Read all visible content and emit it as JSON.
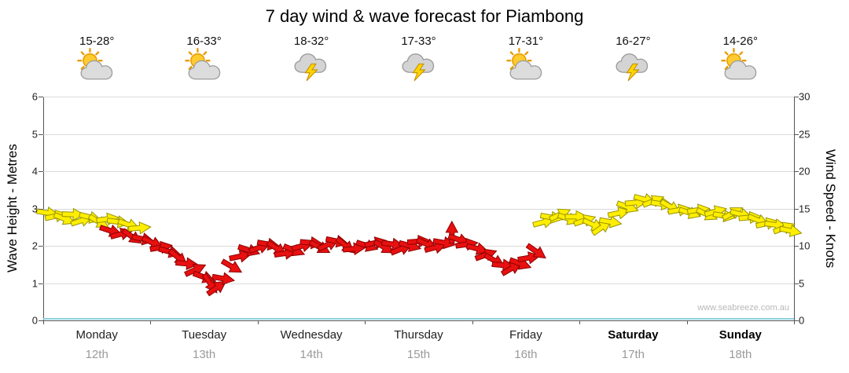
{
  "title": "7 day wind & wave forecast for Piambong",
  "watermark": "www.seabreeze.com.au",
  "axes": {
    "left_label": "Wave Height - Metres",
    "right_label": "Wind Speed - Knots",
    "left_ticks": [
      0,
      1,
      2,
      3,
      4,
      5,
      6
    ],
    "right_ticks": [
      0,
      5,
      10,
      15,
      20,
      25,
      30
    ]
  },
  "forecast": {
    "days": [
      {
        "name": "Monday",
        "date": "12th",
        "temp": "15-28°",
        "icon": "sun-cloud",
        "bold": false
      },
      {
        "name": "Tuesday",
        "date": "13th",
        "temp": "16-33°",
        "icon": "sun-cloud",
        "bold": false
      },
      {
        "name": "Wednesday",
        "date": "14th",
        "temp": "18-32°",
        "icon": "storm",
        "bold": false
      },
      {
        "name": "Thursday",
        "date": "15th",
        "temp": "17-33°",
        "icon": "storm",
        "bold": false
      },
      {
        "name": "Friday",
        "date": "16th",
        "temp": "17-31°",
        "icon": "sun-cloud",
        "bold": false
      },
      {
        "name": "Saturday",
        "date": "17th",
        "temp": "16-27°",
        "icon": "storm",
        "bold": true
      },
      {
        "name": "Sunday",
        "date": "18th",
        "temp": "14-26°",
        "icon": "sun-cloud",
        "bold": true
      }
    ]
  },
  "chart_data": {
    "type": "scatter",
    "subtype": "wind-direction-arrows",
    "title": "7 day wind & wave forecast for Piambong",
    "x_categories": [
      "Monday 12th",
      "Tuesday 13th",
      "Wednesday 14th",
      "Thursday 15th",
      "Friday 16th",
      "Saturday 17th",
      "Sunday 18th"
    ],
    "y_left": {
      "label": "Wave Height - Metres",
      "range": [
        0,
        6
      ]
    },
    "y_right": {
      "label": "Wind Speed - Knots",
      "range": [
        0,
        30
      ]
    },
    "grid": "horizontal",
    "legend": "none",
    "colors": {
      "y": "#ffee00",
      "r": "#e81010"
    },
    "outline_colors": {
      "y": "#999400",
      "r": "#8c0000"
    },
    "wave_height": {
      "constant_m": 0.05,
      "color": "#8ecfdd"
    },
    "points_format": [
      "day_fraction_x",
      "wind_knots",
      "direction_deg",
      "color_key"
    ],
    "points": [
      [
        0.04,
        14.4,
        10,
        "y"
      ],
      [
        0.12,
        14.0,
        -12,
        "y"
      ],
      [
        0.2,
        13.6,
        22,
        "y"
      ],
      [
        0.28,
        14.2,
        2,
        "y"
      ],
      [
        0.36,
        13.4,
        -18,
        "y"
      ],
      [
        0.44,
        13.8,
        15,
        "y"
      ],
      [
        0.52,
        13.2,
        30,
        "y"
      ],
      [
        0.6,
        13.6,
        -8,
        "y"
      ],
      [
        0.63,
        12.0,
        18,
        "r"
      ],
      [
        0.7,
        13.2,
        8,
        "y"
      ],
      [
        0.73,
        11.6,
        -15,
        "r"
      ],
      [
        0.8,
        12.8,
        20,
        "y"
      ],
      [
        0.83,
        11.2,
        35,
        "r"
      ],
      [
        0.9,
        12.4,
        -5,
        "y"
      ],
      [
        0.93,
        10.9,
        12,
        "r"
      ],
      [
        1.02,
        10.4,
        25,
        "r"
      ],
      [
        1.1,
        9.8,
        -10,
        "r"
      ],
      [
        1.18,
        9.2,
        15,
        "r"
      ],
      [
        1.26,
        8.4,
        40,
        "r"
      ],
      [
        1.34,
        7.6,
        5,
        "r"
      ],
      [
        1.42,
        6.8,
        -25,
        "r"
      ],
      [
        1.5,
        5.8,
        20,
        "r"
      ],
      [
        1.56,
        4.9,
        55,
        "r"
      ],
      [
        1.62,
        4.4,
        -35,
        "r"
      ],
      [
        1.68,
        5.6,
        10,
        "r"
      ],
      [
        1.76,
        7.2,
        30,
        "r"
      ],
      [
        1.84,
        8.6,
        -12,
        "r"
      ],
      [
        1.92,
        9.4,
        18,
        "r"
      ],
      [
        2.02,
        9.8,
        -20,
        "r"
      ],
      [
        2.1,
        10.2,
        10,
        "r"
      ],
      [
        2.18,
        9.6,
        35,
        "r"
      ],
      [
        2.26,
        9.0,
        -8,
        "r"
      ],
      [
        2.34,
        9.4,
        22,
        "r"
      ],
      [
        2.42,
        10.0,
        -15,
        "r"
      ],
      [
        2.5,
        10.4,
        5,
        "r"
      ],
      [
        2.58,
        9.8,
        28,
        "r"
      ],
      [
        2.66,
        10.2,
        -25,
        "r"
      ],
      [
        2.74,
        10.6,
        12,
        "r"
      ],
      [
        2.82,
        10.0,
        40,
        "r"
      ],
      [
        2.9,
        9.6,
        -5,
        "r"
      ],
      [
        3.02,
        10.0,
        18,
        "r"
      ],
      [
        3.1,
        10.4,
        -12,
        "r"
      ],
      [
        3.18,
        9.8,
        30,
        "r"
      ],
      [
        3.26,
        10.2,
        8,
        "r"
      ],
      [
        3.34,
        9.6,
        -22,
        "r"
      ],
      [
        3.42,
        10.0,
        15,
        "r"
      ],
      [
        3.5,
        10.6,
        -5,
        "r"
      ],
      [
        3.58,
        10.2,
        25,
        "r"
      ],
      [
        3.66,
        9.8,
        -15,
        "r"
      ],
      [
        3.74,
        10.4,
        10,
        "r"
      ],
      [
        3.81,
        11.8,
        -90,
        "r"
      ],
      [
        3.88,
        10.8,
        20,
        "r"
      ],
      [
        3.95,
        10.2,
        -8,
        "r"
      ],
      [
        4.05,
        9.6,
        15,
        "r"
      ],
      [
        4.13,
        8.8,
        -20,
        "r"
      ],
      [
        4.21,
        8.0,
        30,
        "r"
      ],
      [
        4.29,
        7.4,
        5,
        "r"
      ],
      [
        4.37,
        7.0,
        -30,
        "r"
      ],
      [
        4.45,
        7.6,
        20,
        "r"
      ],
      [
        4.53,
        8.4,
        -10,
        "r"
      ],
      [
        4.6,
        9.2,
        35,
        "r"
      ],
      [
        4.67,
        13.2,
        -15,
        "y"
      ],
      [
        4.74,
        13.8,
        10,
        "y"
      ],
      [
        4.82,
        14.2,
        -25,
        "y"
      ],
      [
        4.9,
        13.6,
        20,
        "y"
      ],
      [
        4.97,
        13.9,
        0,
        "y"
      ],
      [
        5.05,
        13.4,
        -18,
        "y"
      ],
      [
        5.13,
        12.8,
        25,
        "y"
      ],
      [
        5.21,
        12.5,
        -35,
        "y"
      ],
      [
        5.29,
        13.2,
        10,
        "y"
      ],
      [
        5.37,
        14.4,
        -12,
        "y"
      ],
      [
        5.45,
        15.2,
        20,
        "y"
      ],
      [
        5.53,
        15.8,
        -5,
        "y"
      ],
      [
        5.61,
        16.2,
        15,
        "y"
      ],
      [
        5.69,
        16.0,
        -22,
        "y"
      ],
      [
        5.77,
        15.6,
        8,
        "y"
      ],
      [
        5.85,
        15.2,
        30,
        "y"
      ],
      [
        5.93,
        14.8,
        -10,
        "y"
      ],
      [
        6.03,
        14.4,
        18,
        "y"
      ],
      [
        6.11,
        14.8,
        -8,
        "y"
      ],
      [
        6.19,
        14.2,
        25,
        "y"
      ],
      [
        6.27,
        14.6,
        -15,
        "y"
      ],
      [
        6.35,
        14.0,
        10,
        "y"
      ],
      [
        6.43,
        14.4,
        -28,
        "y"
      ],
      [
        6.51,
        14.2,
        15,
        "y"
      ],
      [
        6.59,
        13.8,
        -5,
        "y"
      ],
      [
        6.67,
        13.4,
        22,
        "y"
      ],
      [
        6.75,
        13.0,
        -12,
        "y"
      ],
      [
        6.83,
        12.8,
        8,
        "y"
      ],
      [
        6.91,
        12.4,
        -20,
        "y"
      ],
      [
        6.97,
        12.0,
        12,
        "y"
      ]
    ]
  }
}
